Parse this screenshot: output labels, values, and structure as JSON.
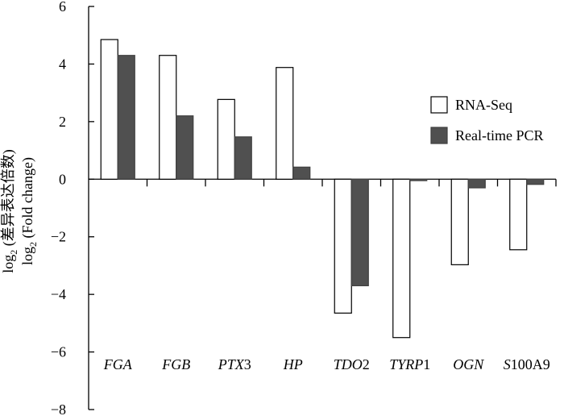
{
  "chart_data": {
    "type": "bar",
    "categories": [
      {
        "italic": "FGA",
        "plain": ""
      },
      {
        "italic": "FGB",
        "plain": ""
      },
      {
        "italic": "PTX",
        "plain": "3"
      },
      {
        "italic": "HP",
        "plain": ""
      },
      {
        "italic": "TDO",
        "plain": "2"
      },
      {
        "italic": "TYRP",
        "plain": "1"
      },
      {
        "italic": "OGN",
        "plain": ""
      },
      {
        "italic": "S",
        "plain": "100A9"
      }
    ],
    "series": [
      {
        "name": "RNA-Seq",
        "color": "#ffffff",
        "stroke": "#000000",
        "values": [
          4.85,
          4.3,
          2.77,
          3.88,
          -4.65,
          -5.5,
          -2.97,
          -2.45
        ]
      },
      {
        "name": "Real-time PCR",
        "color": "#505050",
        "stroke": "#404040",
        "values": [
          4.3,
          2.2,
          1.47,
          0.42,
          -3.7,
          -0.05,
          -0.3,
          -0.18
        ]
      }
    ],
    "ylabel_line1": {
      "base": "log",
      "sub": "2",
      "rest": " (差异表达倍数)"
    },
    "ylabel_line2": {
      "base": "log",
      "sub": "2",
      "rest": " (Fold change)"
    },
    "ylim": [
      -8,
      6
    ],
    "yticks": [
      6,
      4,
      2,
      0,
      -2,
      -4,
      -6,
      -8
    ],
    "tick_labels": [
      "6",
      "4",
      "2",
      "0",
      "−2",
      "−4",
      "−6",
      "−8"
    ],
    "grid": false,
    "legend_position": "right"
  }
}
